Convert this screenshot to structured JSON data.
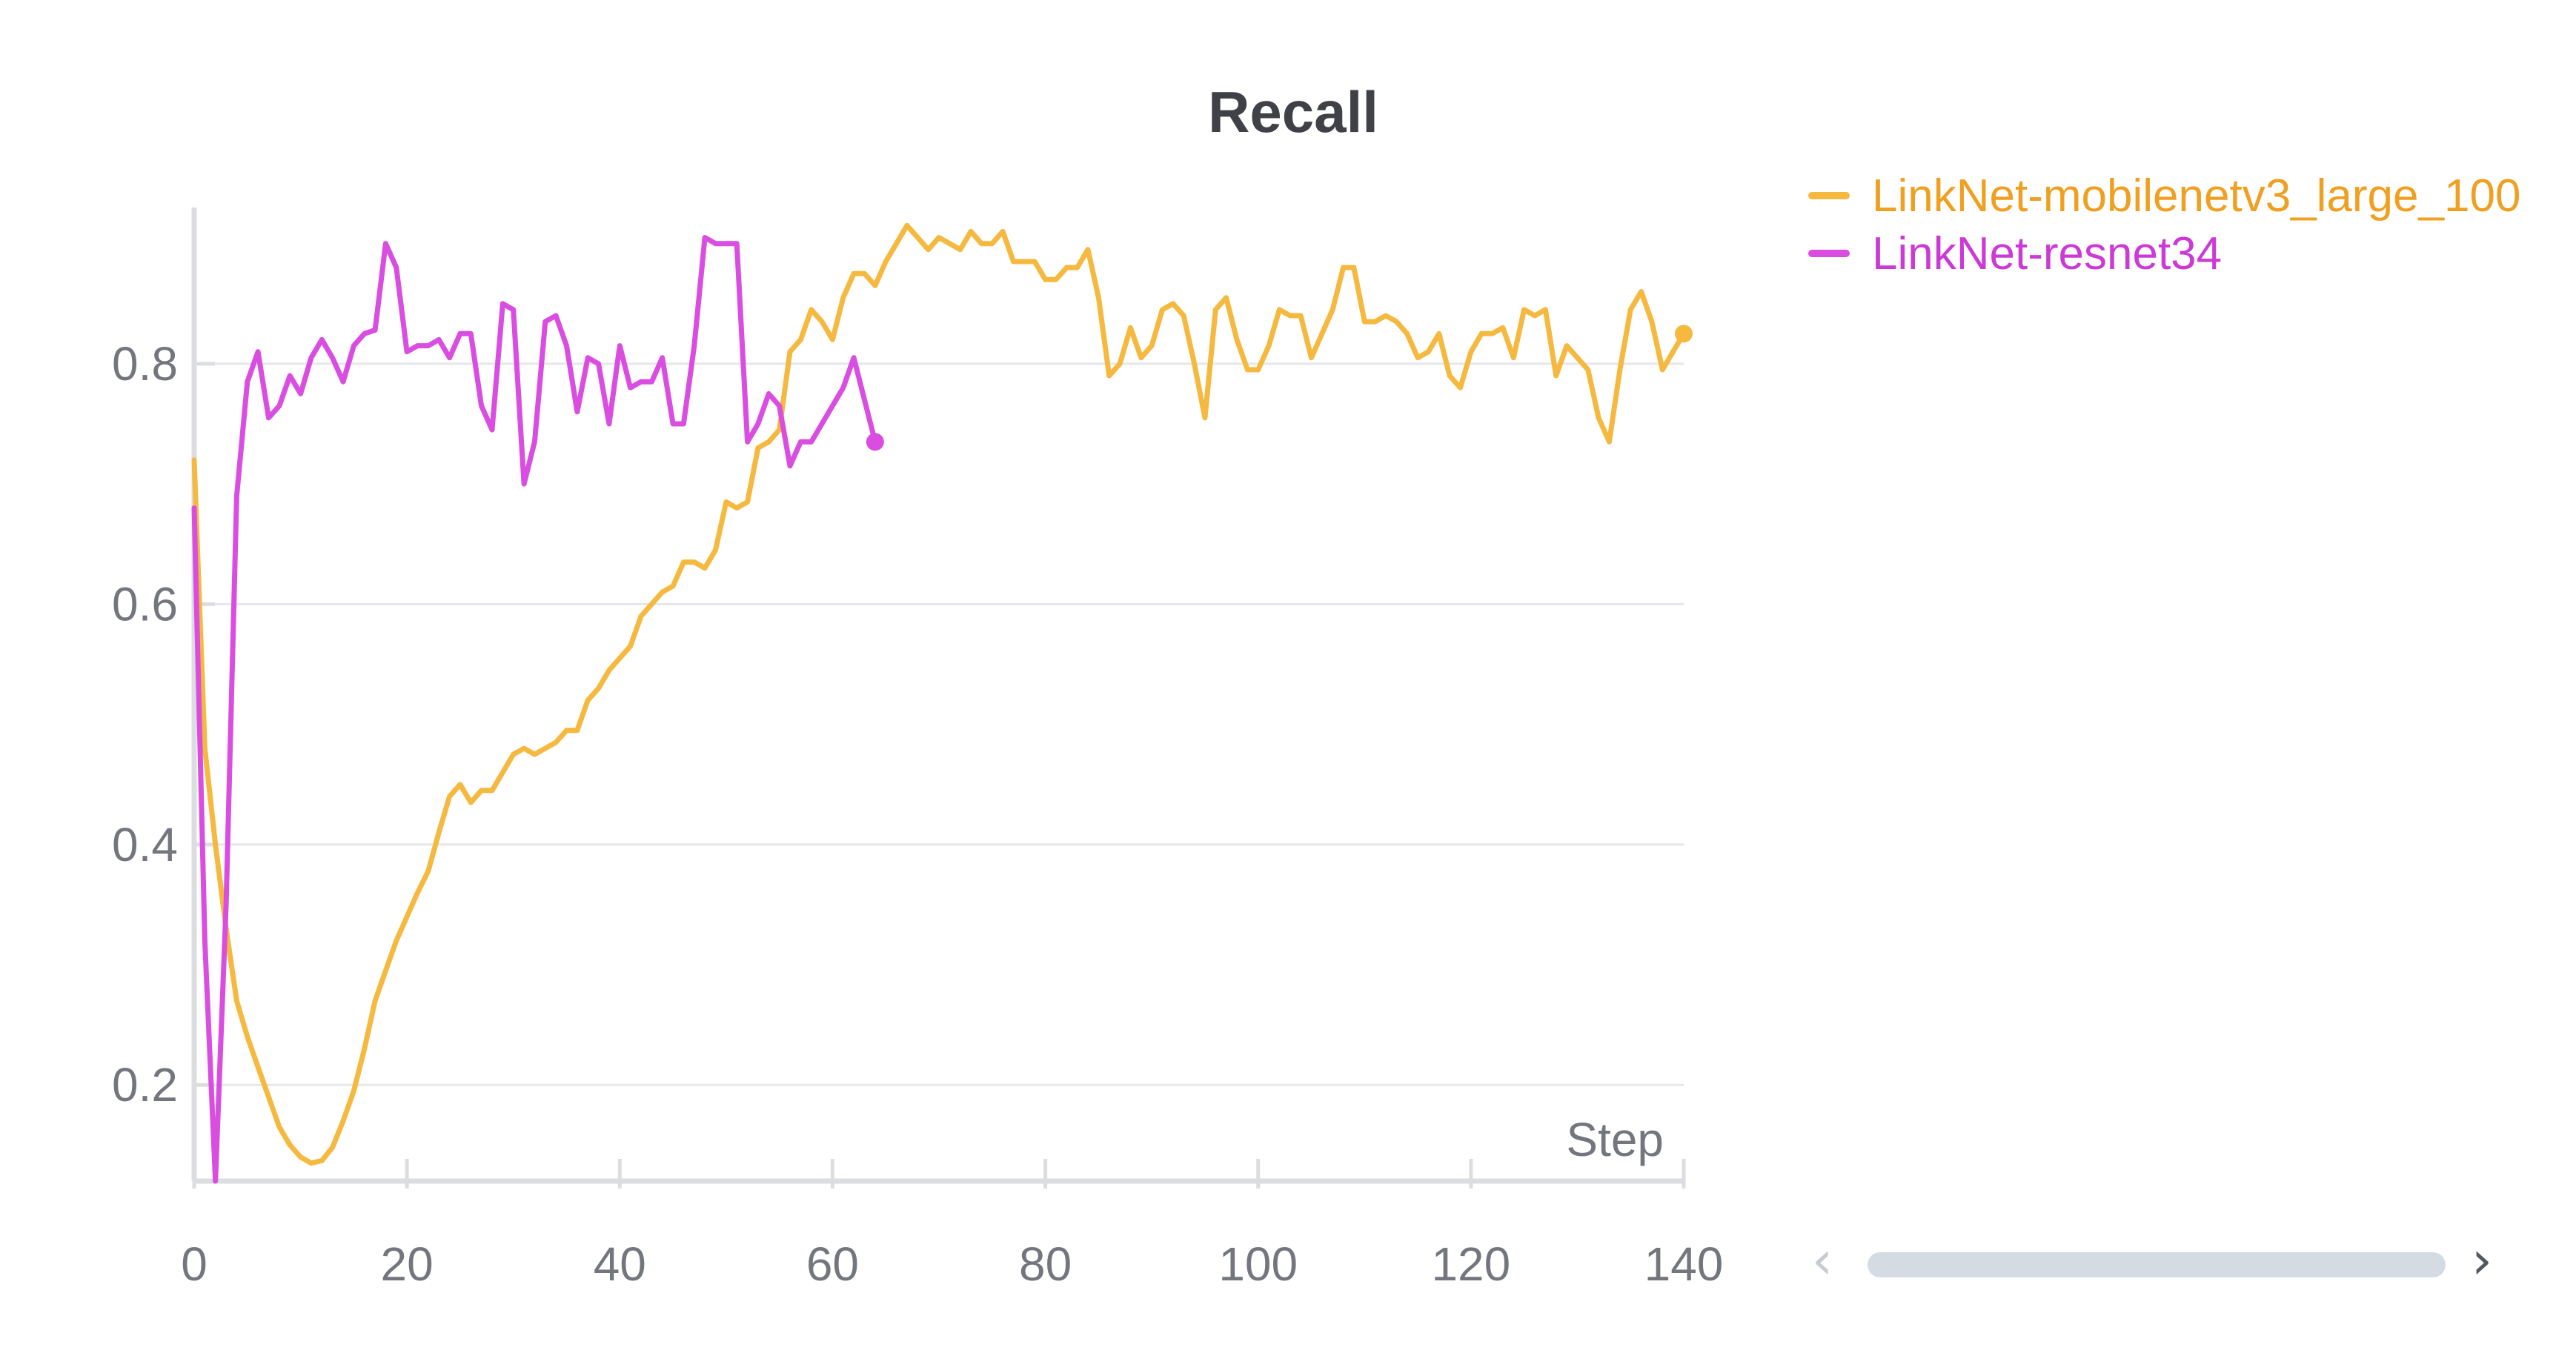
{
  "chart_data": {
    "type": "line",
    "title": "Recall",
    "xlabel": "Step",
    "ylabel": "",
    "xlim": [
      0,
      140
    ],
    "ylim": [
      0.12,
      0.93
    ],
    "xticks": [
      0,
      20,
      40,
      60,
      80,
      100,
      120,
      140
    ],
    "yticks": [
      0.2,
      0.4,
      0.6,
      0.8
    ],
    "grid": true,
    "legend_position": "right",
    "series": [
      {
        "name": "LinkNet-mobilenetv3_large_100",
        "color": "#f5b940",
        "legend_color": "#f0a020",
        "x": [
          0,
          1,
          2,
          3,
          4,
          5,
          6,
          7,
          8,
          9,
          10,
          11,
          12,
          13,
          14,
          15,
          16,
          17,
          18,
          19,
          20,
          21,
          22,
          23,
          24,
          25,
          26,
          27,
          28,
          29,
          30,
          31,
          32,
          33,
          34,
          35,
          36,
          37,
          38,
          39,
          40,
          41,
          42,
          43,
          44,
          45,
          46,
          47,
          48,
          49,
          50,
          51,
          52,
          53,
          54,
          55,
          56,
          57,
          58,
          59,
          60,
          61,
          62,
          63,
          64,
          65,
          66,
          67,
          68,
          69,
          70,
          71,
          72,
          73,
          74,
          75,
          76,
          77,
          78,
          79,
          80,
          81,
          82,
          83,
          84,
          85,
          86,
          87,
          88,
          89,
          90,
          91,
          92,
          93,
          94,
          95,
          96,
          97,
          98,
          99,
          100,
          101,
          102,
          103,
          104,
          105,
          106,
          107,
          108,
          109,
          110,
          111,
          112,
          113,
          114,
          115,
          116,
          117,
          118,
          119,
          120,
          121,
          122,
          123,
          124,
          125,
          126,
          127,
          128,
          129,
          130,
          131,
          132,
          133,
          134,
          135,
          136,
          137,
          138,
          139,
          140
        ],
        "y": [
          0.72,
          0.48,
          0.4,
          0.33,
          0.27,
          0.24,
          0.215,
          0.19,
          0.165,
          0.15,
          0.14,
          0.135,
          0.137,
          0.148,
          0.17,
          0.195,
          0.23,
          0.27,
          0.295,
          0.32,
          0.34,
          0.36,
          0.378,
          0.41,
          0.44,
          0.45,
          0.435,
          0.445,
          0.445,
          0.46,
          0.475,
          0.48,
          0.475,
          0.48,
          0.485,
          0.495,
          0.495,
          0.52,
          0.53,
          0.545,
          0.555,
          0.565,
          0.59,
          0.6,
          0.61,
          0.615,
          0.635,
          0.635,
          0.63,
          0.645,
          0.685,
          0.68,
          0.685,
          0.73,
          0.735,
          0.745,
          0.81,
          0.82,
          0.845,
          0.835,
          0.82,
          0.855,
          0.875,
          0.875,
          0.865,
          0.885,
          0.9,
          0.915,
          0.905,
          0.895,
          0.905,
          0.9,
          0.895,
          0.91,
          0.9,
          0.9,
          0.91,
          0.885,
          0.885,
          0.885,
          0.87,
          0.87,
          0.88,
          0.88,
          0.895,
          0.855,
          0.79,
          0.8,
          0.83,
          0.805,
          0.815,
          0.845,
          0.85,
          0.84,
          0.8,
          0.755,
          0.845,
          0.855,
          0.82,
          0.795,
          0.795,
          0.815,
          0.845,
          0.84,
          0.84,
          0.805,
          0.825,
          0.845,
          0.88,
          0.88,
          0.835,
          0.835,
          0.84,
          0.835,
          0.825,
          0.805,
          0.81,
          0.825,
          0.79,
          0.78,
          0.81,
          0.825,
          0.825,
          0.83,
          0.805,
          0.845,
          0.84,
          0.845,
          0.79,
          0.815,
          0.805,
          0.795,
          0.755,
          0.735,
          0.795,
          0.845,
          0.86,
          0.835,
          0.795,
          0.81,
          0.825
        ]
      },
      {
        "name": "LinkNet-resnet34",
        "color": "#d94ee0",
        "legend_color": "#cc3ad6",
        "x": [
          0,
          1,
          2,
          3,
          4,
          5,
          6,
          7,
          8,
          9,
          10,
          11,
          12,
          13,
          14,
          15,
          16,
          17,
          18,
          19,
          20,
          21,
          22,
          23,
          24,
          25,
          26,
          27,
          28,
          29,
          30,
          31,
          32,
          33,
          34,
          35,
          36,
          37,
          38,
          39,
          40,
          41,
          42,
          43,
          44,
          45,
          46,
          47,
          48,
          49,
          50,
          51,
          52,
          53,
          54,
          55,
          56,
          57,
          58,
          59,
          60,
          61,
          62,
          63,
          64
        ],
        "y": [
          0.68,
          0.32,
          0.12,
          0.35,
          0.69,
          0.785,
          0.81,
          0.755,
          0.765,
          0.79,
          0.775,
          0.805,
          0.82,
          0.805,
          0.785,
          0.815,
          0.825,
          0.828,
          0.9,
          0.88,
          0.81,
          0.815,
          0.815,
          0.82,
          0.805,
          0.825,
          0.825,
          0.765,
          0.745,
          0.85,
          0.845,
          0.7,
          0.735,
          0.835,
          0.84,
          0.815,
          0.76,
          0.805,
          0.8,
          0.75,
          0.815,
          0.78,
          0.785,
          0.785,
          0.805,
          0.75,
          0.75,
          0.815,
          0.905,
          0.9,
          0.9,
          0.9,
          0.735,
          0.75,
          0.775,
          0.765,
          0.715,
          0.735,
          0.735,
          0.75,
          0.765,
          0.78,
          0.805,
          0.77,
          0.735
        ]
      }
    ]
  }
}
